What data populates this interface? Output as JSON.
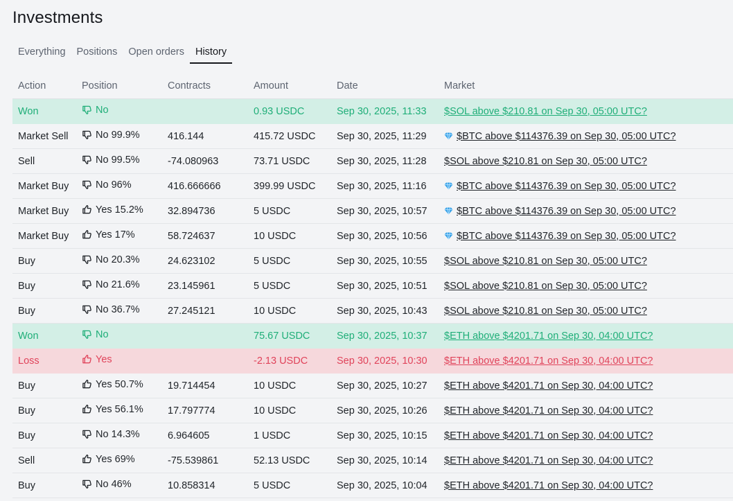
{
  "title": "Investments",
  "tabs": [
    {
      "label": "Everything",
      "active": false
    },
    {
      "label": "Positions",
      "active": false
    },
    {
      "label": "Open orders",
      "active": false
    },
    {
      "label": "History",
      "active": true
    }
  ],
  "columns": [
    "Action",
    "Position",
    "Contracts",
    "Amount",
    "Date",
    "Market"
  ],
  "colors": {
    "won_bg": "#d3efe6",
    "won_text": "#1fae78",
    "loss_bg": "#f6d8dc",
    "loss_text": "#e0435a"
  },
  "rows": [
    {
      "status": "won",
      "action": "Won",
      "icon": "thumbs-down-icon",
      "position": "No",
      "contracts": "",
      "amount": "0.93 USDC",
      "date": "Sep 30, 2025, 11:33",
      "gem": false,
      "market": "$SOL above $210.81 on Sep 30, 05:00 UTC?"
    },
    {
      "status": "normal",
      "action": "Market Sell",
      "icon": "thumbs-down-icon",
      "position": "No 99.9%",
      "contracts": "416.144",
      "amount": "415.72 USDC",
      "date": "Sep 30, 2025, 11:29",
      "gem": true,
      "market": "$BTC above $114376.39 on Sep 30, 05:00 UTC?"
    },
    {
      "status": "normal",
      "action": "Sell",
      "icon": "thumbs-down-icon",
      "position": "No 99.5%",
      "contracts": "-74.080963",
      "amount": "73.71 USDC",
      "date": "Sep 30, 2025, 11:28",
      "gem": false,
      "market": "$SOL above $210.81 on Sep 30, 05:00 UTC?"
    },
    {
      "status": "normal",
      "action": "Market Buy",
      "icon": "thumbs-down-icon",
      "position": "No 96%",
      "contracts": "416.666666",
      "amount": "399.99 USDC",
      "date": "Sep 30, 2025, 11:16",
      "gem": true,
      "market": "$BTC above $114376.39 on Sep 30, 05:00 UTC?"
    },
    {
      "status": "normal",
      "action": "Market Buy",
      "icon": "thumbs-up-icon",
      "position": "Yes 15.2%",
      "contracts": "32.894736",
      "amount": "5 USDC",
      "date": "Sep 30, 2025, 10:57",
      "gem": true,
      "market": "$BTC above $114376.39 on Sep 30, 05:00 UTC?"
    },
    {
      "status": "normal",
      "action": "Market Buy",
      "icon": "thumbs-up-icon",
      "position": "Yes 17%",
      "contracts": "58.724637",
      "amount": "10 USDC",
      "date": "Sep 30, 2025, 10:56",
      "gem": true,
      "market": "$BTC above $114376.39 on Sep 30, 05:00 UTC?"
    },
    {
      "status": "normal",
      "action": "Buy",
      "icon": "thumbs-down-icon",
      "position": "No 20.3%",
      "contracts": "24.623102",
      "amount": "5 USDC",
      "date": "Sep 30, 2025, 10:55",
      "gem": false,
      "market": "$SOL above $210.81 on Sep 30, 05:00 UTC?"
    },
    {
      "status": "normal",
      "action": "Buy",
      "icon": "thumbs-down-icon",
      "position": "No 21.6%",
      "contracts": "23.145961",
      "amount": "5 USDC",
      "date": "Sep 30, 2025, 10:51",
      "gem": false,
      "market": "$SOL above $210.81 on Sep 30, 05:00 UTC?"
    },
    {
      "status": "normal",
      "action": "Buy",
      "icon": "thumbs-down-icon",
      "position": "No 36.7%",
      "contracts": "27.245121",
      "amount": "10 USDC",
      "date": "Sep 30, 2025, 10:43",
      "gem": false,
      "market": "$SOL above $210.81 on Sep 30, 05:00 UTC?"
    },
    {
      "status": "won",
      "action": "Won",
      "icon": "thumbs-down-icon",
      "position": "No",
      "contracts": "",
      "amount": "75.67 USDC",
      "date": "Sep 30, 2025, 10:37",
      "gem": false,
      "market": "$ETH above $4201.71 on Sep 30, 04:00 UTC?"
    },
    {
      "status": "loss",
      "action": "Loss",
      "icon": "thumbs-up-icon",
      "position": "Yes",
      "contracts": "",
      "amount": "-2.13 USDC",
      "date": "Sep 30, 2025, 10:30",
      "gem": false,
      "market": "$ETH above $4201.71 on Sep 30, 04:00 UTC?"
    },
    {
      "status": "normal",
      "action": "Buy",
      "icon": "thumbs-up-icon",
      "position": "Yes 50.7%",
      "contracts": "19.714454",
      "amount": "10 USDC",
      "date": "Sep 30, 2025, 10:27",
      "gem": false,
      "market": "$ETH above $4201.71 on Sep 30, 04:00 UTC?"
    },
    {
      "status": "normal",
      "action": "Buy",
      "icon": "thumbs-up-icon",
      "position": "Yes 56.1%",
      "contracts": "17.797774",
      "amount": "10 USDC",
      "date": "Sep 30, 2025, 10:26",
      "gem": false,
      "market": "$ETH above $4201.71 on Sep 30, 04:00 UTC?"
    },
    {
      "status": "normal",
      "action": "Buy",
      "icon": "thumbs-down-icon",
      "position": "No 14.3%",
      "contracts": "6.964605",
      "amount": "1 USDC",
      "date": "Sep 30, 2025, 10:15",
      "gem": false,
      "market": "$ETH above $4201.71 on Sep 30, 04:00 UTC?"
    },
    {
      "status": "normal",
      "action": "Sell",
      "icon": "thumbs-up-icon",
      "position": "Yes 69%",
      "contracts": "-75.539861",
      "amount": "52.13 USDC",
      "date": "Sep 30, 2025, 10:14",
      "gem": false,
      "market": "$ETH above $4201.71 on Sep 30, 04:00 UTC?"
    },
    {
      "status": "normal",
      "action": "Buy",
      "icon": "thumbs-down-icon",
      "position": "No 46%",
      "contracts": "10.858314",
      "amount": "5 USDC",
      "date": "Sep 30, 2025, 10:04",
      "gem": false,
      "market": "$ETH above $4201.71 on Sep 30, 04:00 UTC?"
    }
  ]
}
